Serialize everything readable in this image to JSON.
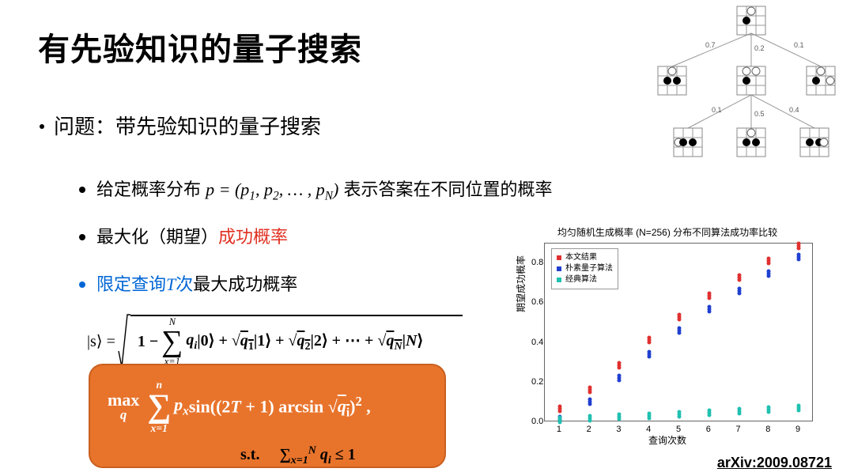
{
  "title": "有先验知识的量子搜索",
  "bullet1": "问题：带先验知识的量子搜索",
  "b2a_pre": "给定概率分布 ",
  "b2a_math": "p = (p₁, p₂, …, p_N)",
  "b2a_post": " 表示答案在不同位置的概率",
  "b2b_pre": "最大化（期望）",
  "b2b_red": "成功概率",
  "b2c_blue": "限定查询T次",
  "b2c_post": "最大成功概率",
  "formula_s_lhs": "|s⟩ = ",
  "formula_s_sum_top": "N",
  "formula_s_sum_bot": "x=1",
  "formula_s_body": "qᵢ |0⟩ + √q₁ |1⟩ + √q₂ |2⟩ + ⋯ + √q_N |N⟩",
  "opt_max": "max",
  "opt_q": "q",
  "opt_sum_top": "n",
  "opt_sum_bot": "x=1",
  "opt_body": "pₓ sin((2T + 1) arcsin √qᵢ)² ,",
  "opt_st": "s.t.",
  "opt_cons": "∑ₓ₌₁ᴺ qᵢ ≤ 1",
  "arxiv": "arXiv:2009.08721",
  "chart": {
    "title": "均匀随机生成概率 (N=256) 分布不同算法成功率比较",
    "ylabel": "期望成功概率",
    "xlabel": "查询次数",
    "ylim": [
      0,
      0.9
    ],
    "yticks": [
      0.0,
      0.2,
      0.4,
      0.6,
      0.8
    ],
    "xticks": [
      1,
      2,
      3,
      4,
      5,
      6,
      7,
      8,
      9
    ],
    "legend": [
      {
        "label": "本文结果",
        "color": "#e03030"
      },
      {
        "label": "朴素量子算法",
        "color": "#2040d0"
      },
      {
        "label": "经典算法",
        "color": "#20c0b0"
      }
    ],
    "series": {
      "ours": {
        "color": "#e03030",
        "y": [
          0.06,
          0.155,
          0.28,
          0.405,
          0.52,
          0.63,
          0.72,
          0.805,
          0.88
        ]
      },
      "naive": {
        "color": "#2040d0",
        "y": [
          0.01,
          0.095,
          0.215,
          0.335,
          0.455,
          0.56,
          0.655,
          0.74,
          0.825
        ]
      },
      "classic": {
        "color": "#20c0b0",
        "y": [
          0.004,
          0.011,
          0.018,
          0.025,
          0.032,
          0.04,
          0.048,
          0.056,
          0.064
        ]
      }
    }
  },
  "tree": {
    "edge_labels": [
      "0.7",
      "0.2",
      "0.1",
      "0.1",
      "0.5",
      "0.4"
    ]
  }
}
